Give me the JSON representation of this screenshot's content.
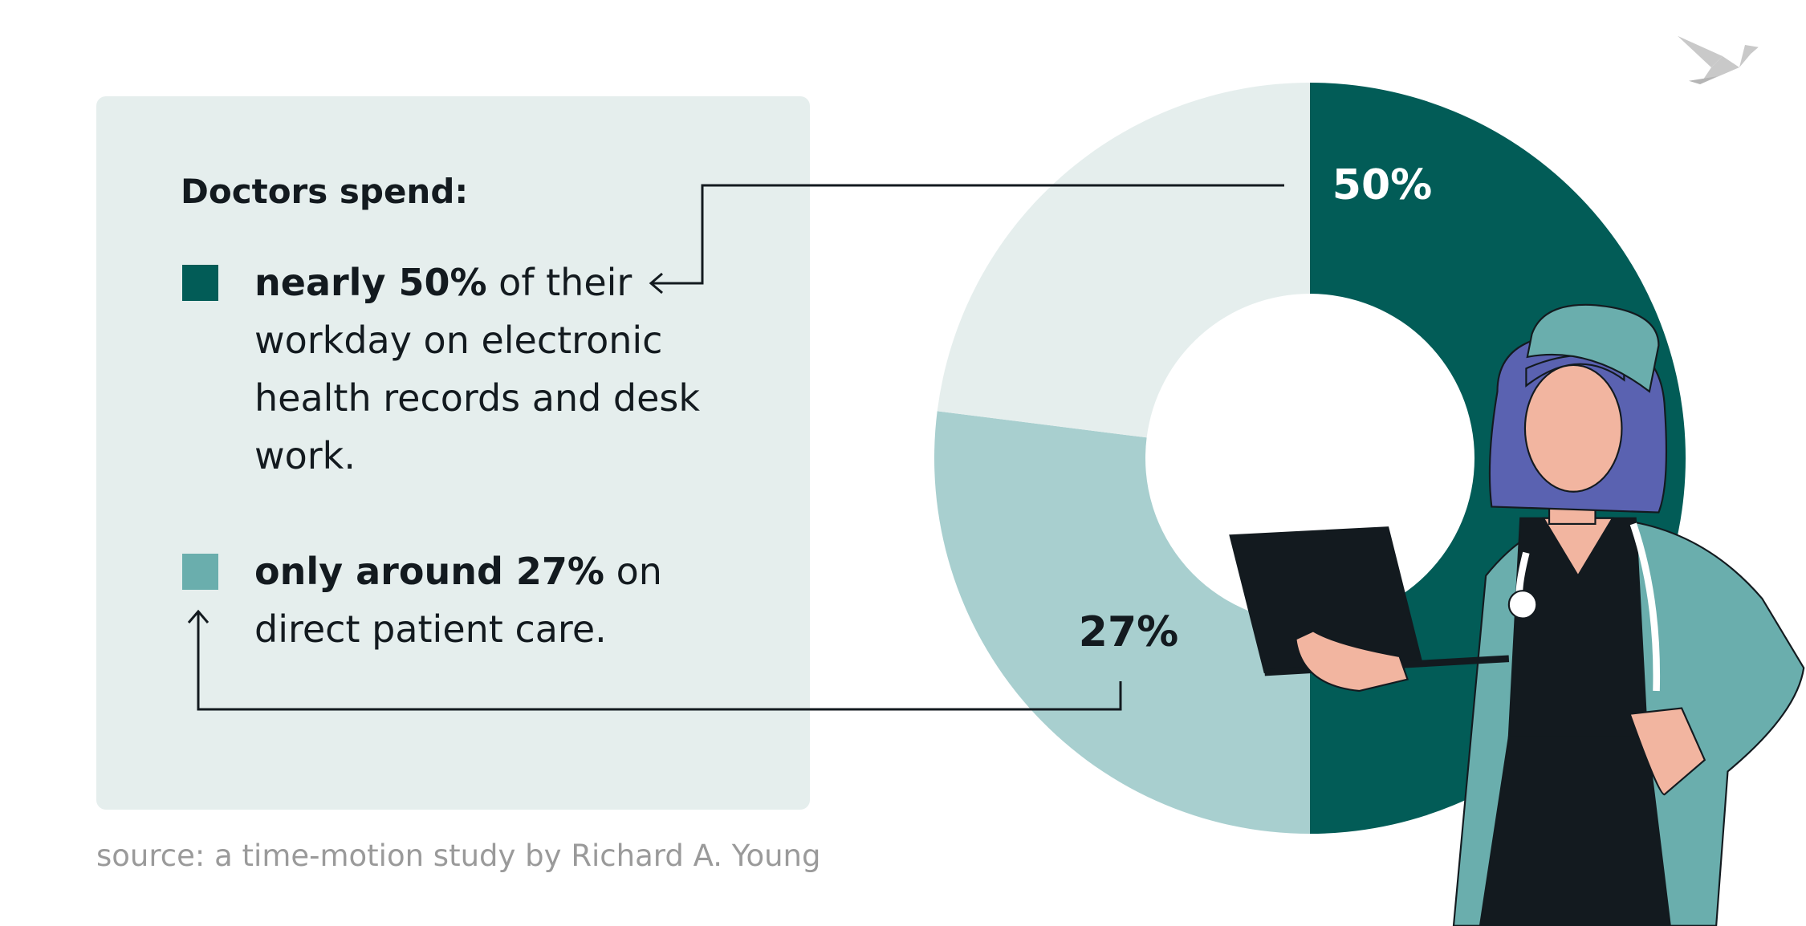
{
  "chart_data": {
    "type": "donut",
    "values": [
      50,
      27,
      23
    ],
    "value_labels": [
      "50%",
      "27%",
      null
    ],
    "colors": [
      "#025c57",
      "#a8cfcf",
      "#e5eeed"
    ],
    "legend": {
      "title": "Doctors spend:",
      "items": [
        {
          "bold": "nearly 50%",
          "text": "of their workday on electronic health records and desk work.",
          "color": "#025c57"
        },
        {
          "bold": "only around 27%",
          "text": "on direct patient care.",
          "color": "#6aaead"
        }
      ]
    },
    "source": "source: a time-motion study by Richard A. Young"
  }
}
